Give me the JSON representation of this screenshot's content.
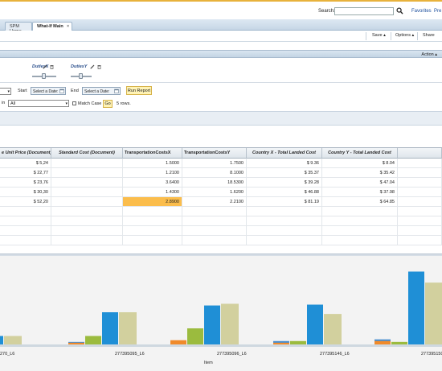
{
  "header": {
    "search_label": "Search:",
    "favorites": "Favorites",
    "preferences": "Pre"
  },
  "tabs": [
    {
      "label": "SPM Home"
    },
    {
      "label": "What-If Main",
      "close": "×"
    }
  ],
  "toolbar": {
    "save": "Save ▴",
    "options": "Options ▴",
    "share": "Share",
    "action": "Action ▴"
  },
  "params": [
    {
      "label": "DutiesX",
      "level": 0.5
    },
    {
      "label": "DutiesY",
      "level": 0.5
    }
  ],
  "filter": {
    "start_label": "Start",
    "end_label": "End",
    "start_placeholder": "Select a Date:",
    "end_placeholder": "Select a Date:",
    "run_report": "Run Report",
    "in_label": "in",
    "all_value": "All",
    "match_case": "Match Case",
    "go": "Go",
    "rows": "5 rows."
  },
  "grid": {
    "columns": [
      "e Unit Price (Document)",
      "Standard Cost (Document)",
      "TransportationCostsX",
      "TransportationCostsY",
      "Country X - Total Landed Cost",
      "Country Y - Total Landed Cost"
    ],
    "rows": [
      [
        "$ 5,24",
        "",
        "1.5000",
        "1.7500",
        "$ 9.36",
        "$ 8.04"
      ],
      [
        "$ 22,77",
        "",
        "1.2100",
        "8.1000",
        "$ 35.37",
        "$ 35.42"
      ],
      [
        "$ 23,76",
        "",
        "3.6400",
        "18.5300",
        "$ 39.28",
        "$ 47.04"
      ],
      [
        "$ 30,30",
        "",
        "1.4300",
        "1.6200",
        "$ 46.88",
        "$ 37.98"
      ],
      [
        "$ 52,20",
        "",
        "2.8900",
        "2.2100",
        "$ 81.19",
        "$ 64.85"
      ]
    ],
    "highlight": {
      "row": 4,
      "col": 2
    }
  },
  "chart_data": {
    "type": "bar",
    "xlabel": "Item",
    "categories": [
      "270_L6",
      "277395095_L6",
      "277395096_L6",
      "277395146_L6",
      "277395150_L6"
    ],
    "series": [
      {
        "color": "#4a8fd0",
        "values": [
          0.4,
          0.3,
          0.4,
          0.4,
          0.6
        ]
      },
      {
        "color": "#f08a2a",
        "values": [
          0.2,
          0.2,
          0.5,
          0.2,
          0.4
        ]
      },
      {
        "color": "#9bbb3e",
        "values": [
          0.3,
          1.0,
          1.9,
          0.4,
          0.3
        ]
      },
      {
        "color": "#1f8fd6",
        "values": [
          1.0,
          3.8,
          4.6,
          4.7,
          8.6
        ]
      },
      {
        "color": "#d2d09e",
        "values": [
          1.0,
          3.8,
          4.8,
          3.6,
          7.3
        ]
      }
    ],
    "ylim": [
      0,
      9.5
    ],
    "grid": false
  }
}
